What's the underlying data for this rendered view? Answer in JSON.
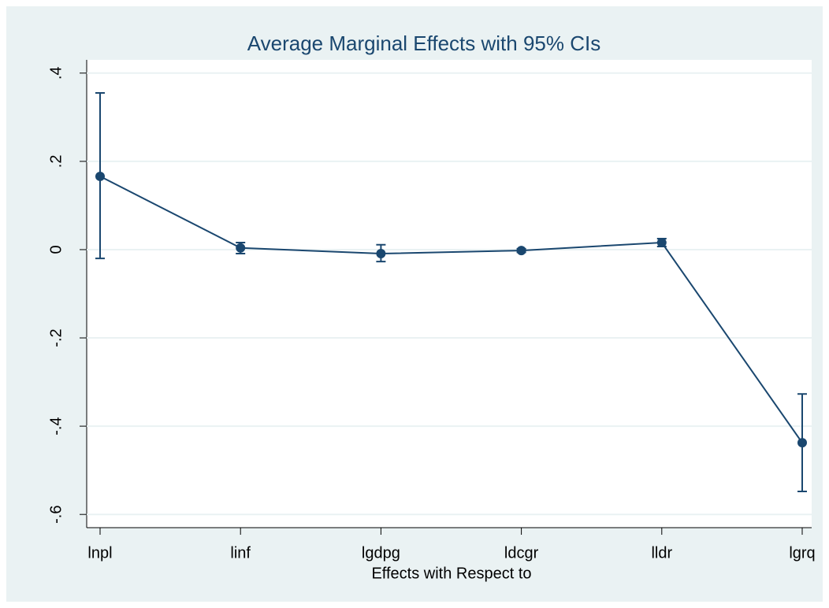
{
  "chart_data": {
    "type": "line",
    "title": "Average Marginal Effects with 95% CIs",
    "x_label": "Effects with Respect to",
    "categories": [
      "lnpl",
      "linf",
      "lgdpg",
      "ldcgr",
      "lldr",
      "lgrq"
    ],
    "series": [
      {
        "color": "#1a476f",
        "values": [
          0.166,
          0.004,
          -0.009,
          -0.002,
          0.016,
          -0.4375
        ],
        "lower": [
          -0.02,
          -0.009,
          -0.027,
          -0.006,
          0.007,
          -0.548
        ],
        "upper": [
          0.355,
          0.016,
          0.011,
          0.002,
          0.025,
          -0.327
        ]
      }
    ],
    "ylim": [
      -0.63,
      0.43
    ],
    "yticks": [
      {
        "value": -0.6,
        "label": "-.6"
      },
      {
        "value": -0.4,
        "label": "-.4"
      },
      {
        "value": -0.2,
        "label": "-.2"
      },
      0,
      {
        "value": 0.2,
        "label": ".2"
      },
      {
        "value": 0.4,
        "label": ".4"
      }
    ],
    "grid": true
  }
}
